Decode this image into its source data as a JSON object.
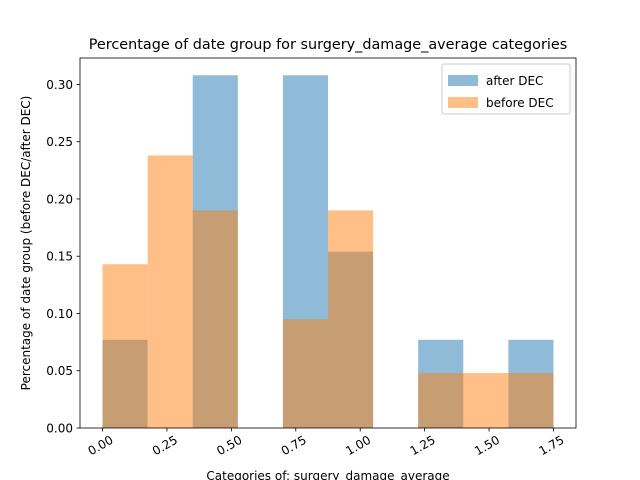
{
  "chart_data": {
    "type": "bar",
    "title": "Percentage of date group for surgery_damage_average categories",
    "xlabel": "Categories of: surgery_damage_average",
    "ylabel": "Percentage of date group (before DEC/after DEC)",
    "xlim": [
      -0.0875,
      1.8375
    ],
    "ylim": [
      0,
      0.3231
    ],
    "x_ticks": [
      "0.00",
      "0.25",
      "0.50",
      "0.75",
      "1.00",
      "1.25",
      "1.50",
      "1.75"
    ],
    "y_ticks": [
      "0.00",
      "0.05",
      "0.10",
      "0.15",
      "0.20",
      "0.25",
      "0.30"
    ],
    "bin_edges": [
      0.0,
      0.175,
      0.35,
      0.525,
      0.7,
      0.875,
      1.05,
      1.225,
      1.4,
      1.575,
      1.75
    ],
    "series": [
      {
        "name": "after DEC",
        "color": "#1f77b4",
        "alpha": 0.5,
        "values": [
          0.077,
          0.0,
          0.308,
          0.0,
          0.308,
          0.154,
          0.0,
          0.077,
          0.0,
          0.077
        ]
      },
      {
        "name": "before DEC",
        "color": "#ff7f0e",
        "alpha": 0.5,
        "values": [
          0.143,
          0.238,
          0.19,
          0.0,
          0.095,
          0.19,
          0.0,
          0.048,
          0.048,
          0.048
        ]
      }
    ],
    "legend_position": "top-right",
    "grid": false
  }
}
